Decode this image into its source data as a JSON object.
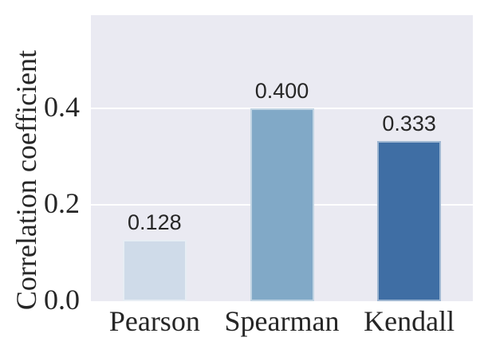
{
  "chart_data": {
    "type": "bar",
    "title": "",
    "categories": [
      "Pearson",
      "Spearman",
      "Kendall"
    ],
    "values": [
      0.128,
      0.4,
      0.333
    ],
    "value_labels": [
      "0.128",
      "0.400",
      "0.333"
    ],
    "series_name": "Correlation coefficient",
    "xlabel": "",
    "ylabel": "Correlation coefficient",
    "yticks": [
      {
        "value": 0.0,
        "label": "0.0"
      },
      {
        "value": 0.2,
        "label": "0.2"
      },
      {
        "value": 0.4,
        "label": "0.4"
      }
    ],
    "ylim": [
      0,
      0.593
    ],
    "grid": true,
    "grid_axis": "y",
    "legend": false,
    "colors": {
      "bar_colors": [
        "#cfdbe9",
        "#81a9c7",
        "#3f6ea4"
      ],
      "plot_background": "#eaeaf2",
      "figure_background": "#ffffff",
      "gridline_color": "#ffffff",
      "text_color": "#262626"
    }
  }
}
